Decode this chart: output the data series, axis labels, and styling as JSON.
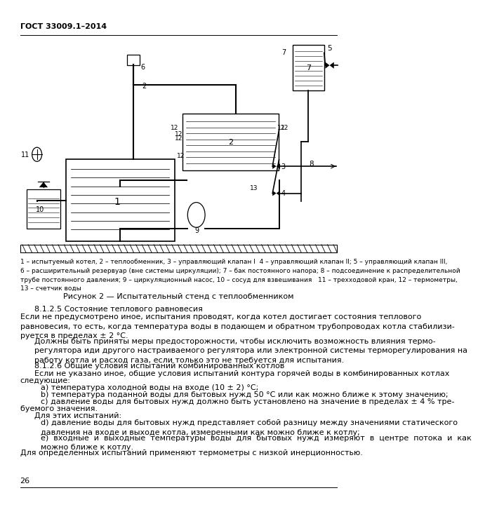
{
  "header": "ГОСТ 33009.1–2014",
  "page_number": "26",
  "figure_caption": "Рисунок 2 — Испытательный стенд с теплообменником",
  "legend": "1 – испытуемый котел, 2 – теплообменник, 3 – управляющий клапан I  4 – управляющий клапан II; 5 – управляющий клапан III,\n6 – расширительный резервуар (вне системы циркуляции); 7 – бак постоянного напора; 8 – подсоединение к распределительной\nтрубе постоянного давления; 9 – циркуляционный насос, 10 – сосуд для взвешивания   11 – трехходовой кран, 12 – термометры,\n13 – счетчик воды",
  "section_825": "8.1.2.5 Состояние теплового равновесия",
  "section_826": "8.1.2.6 Общие условия испытаний комбинированных котлов",
  "bg_color": "#ffffff",
  "text_color": "#000000"
}
